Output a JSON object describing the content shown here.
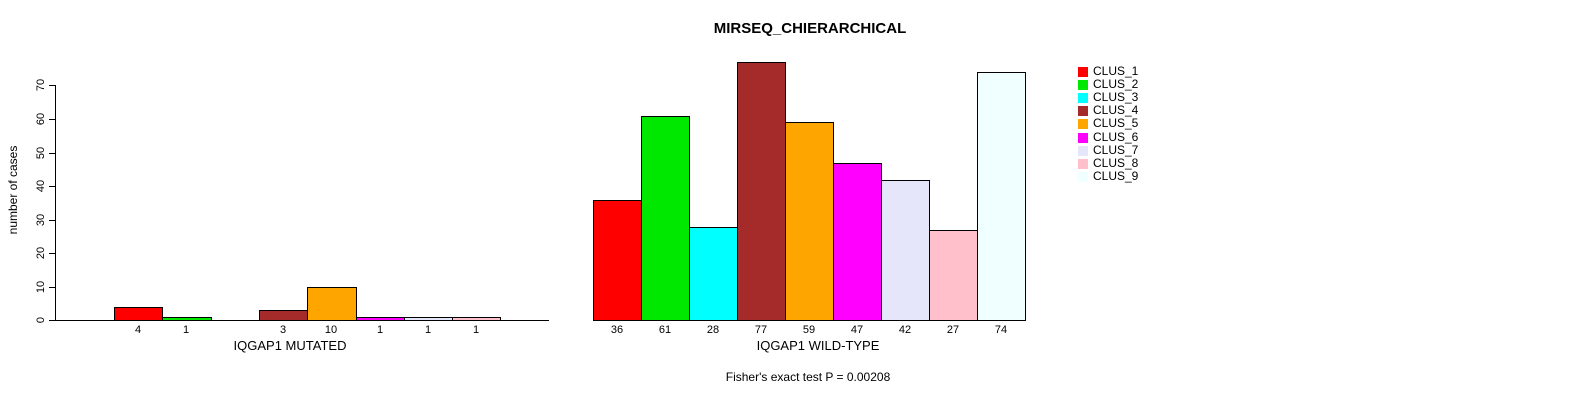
{
  "chart_data": {
    "type": "bar",
    "title": "MIRSEQ_CHIERARCHICAL",
    "ylabel": "number of cases",
    "ylim": [
      0,
      70
    ],
    "yticks": [
      0,
      10,
      20,
      30,
      40,
      50,
      60,
      70
    ],
    "grid": false,
    "legend_position": "right",
    "clusters": [
      {
        "name": "CLUS_1",
        "color": "#FF0000"
      },
      {
        "name": "CLUS_2",
        "color": "#00E800"
      },
      {
        "name": "CLUS_3",
        "color": "#00FFFF"
      },
      {
        "name": "CLUS_4",
        "color": "#A52A2A"
      },
      {
        "name": "CLUS_5",
        "color": "#FFA500"
      },
      {
        "name": "CLUS_6",
        "color": "#FF00FF"
      },
      {
        "name": "CLUS_7",
        "color": "#E6E6FA"
      },
      {
        "name": "CLUS_8",
        "color": "#FFC0CB"
      },
      {
        "name": "CLUS_9",
        "color": "#F0FFFF"
      }
    ],
    "groups": [
      {
        "label": "IQGAP1 MUTATED",
        "values": [
          4,
          1,
          0,
          3,
          10,
          1,
          1,
          1,
          0
        ]
      },
      {
        "label": "IQGAP1 WILD-TYPE",
        "values": [
          36,
          61,
          28,
          77,
          59,
          47,
          42,
          27,
          74
        ]
      }
    ],
    "annotation": "Fisher's exact test P = 0.00208"
  }
}
